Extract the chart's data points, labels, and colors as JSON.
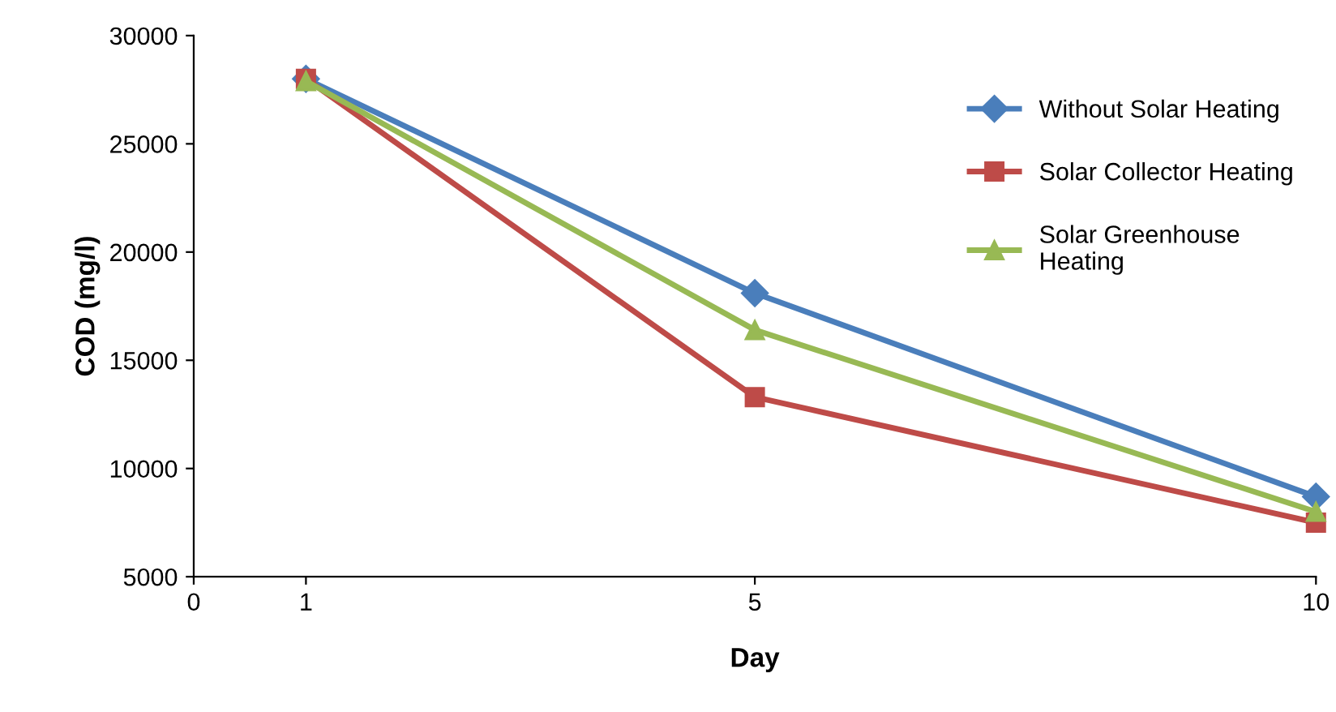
{
  "chart_data": {
    "type": "line",
    "xlabel": "Day",
    "ylabel": "COD (mg/l)",
    "x": [
      1,
      5,
      10
    ],
    "series": [
      {
        "name": "Without Solar Heating",
        "color": "#4a7ebb",
        "marker": "diamond",
        "values": [
          28000,
          18100,
          8700
        ]
      },
      {
        "name": "Solar Collector Heating",
        "color": "#be4b48",
        "marker": "square",
        "values": [
          28000,
          13300,
          7500
        ]
      },
      {
        "name": "Solar Greenhouse\nHeating",
        "color": "#98b954",
        "marker": "triangle",
        "values": [
          27900,
          16400,
          8000
        ]
      }
    ],
    "xlim": [
      0,
      10
    ],
    "xticks": [
      0,
      1,
      5,
      10
    ],
    "ylim": [
      5000,
      30000
    ],
    "yticks": [
      5000,
      10000,
      15000,
      20000,
      25000,
      30000
    ],
    "grid": false,
    "legend": "right",
    "line_style": "solid"
  }
}
